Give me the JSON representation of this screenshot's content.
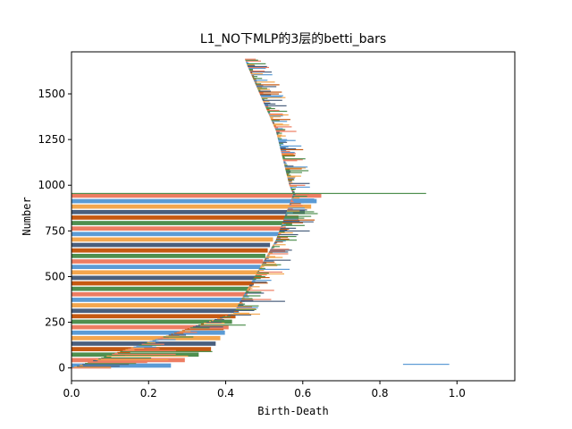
{
  "chart_data": {
    "type": "bar",
    "orientation": "horizontal",
    "title": "L1_NO下MLP的3层的betti_bars",
    "xlabel": "Birth-Death",
    "ylabel": "Number",
    "xlim": [
      0.0,
      1.15
    ],
    "ylim": [
      -70,
      1730
    ],
    "xticks": [
      0.0,
      0.2,
      0.4,
      0.6,
      0.8,
      1.0
    ],
    "xtick_labels": [
      "0.0",
      "0.2",
      "0.4",
      "0.6",
      "0.8",
      "1.0"
    ],
    "yticks": [
      0,
      250,
      500,
      750,
      1000,
      1250,
      1500
    ],
    "ytick_labels": [
      "0",
      "250",
      "500",
      "750",
      "1000",
      "1250",
      "1500"
    ],
    "grid": false,
    "palette": [
      "#5b9bd5",
      "#ed7d62",
      "#4f8f4f",
      "#c65911",
      "#4a5f7d",
      "#f3a64e"
    ],
    "left_edge": [
      [
        0,
        0.0
      ],
      [
        300,
        0.42
      ],
      [
        700,
        0.53
      ],
      [
        950,
        0.575
      ],
      [
        1000,
        0.565
      ],
      [
        1300,
        0.53
      ],
      [
        1660,
        0.455
      ],
      [
        1690,
        0.45
      ]
    ],
    "long_bar_right": [
      [
        0,
        0.24
      ],
      [
        100,
        0.36
      ],
      [
        200,
        0.4
      ],
      [
        300,
        0.43
      ],
      [
        400,
        0.455
      ],
      [
        500,
        0.48
      ],
      [
        600,
        0.5
      ],
      [
        700,
        0.52
      ],
      [
        800,
        0.575
      ],
      [
        900,
        0.63
      ],
      [
        950,
        0.65
      ]
    ],
    "spread_by_range": [
      {
        "from": 0,
        "to": 100,
        "tail": 0.25
      },
      {
        "from": 100,
        "to": 400,
        "tail": 0.12
      },
      {
        "from": 400,
        "to": 950,
        "tail": 0.08
      },
      {
        "from": 950,
        "to": 1700,
        "tail": 0.06
      }
    ],
    "long_bars_range": [
      0,
      950
    ],
    "long_bar_thickness": 30,
    "outlier_bars": [
      {
        "y": 955,
        "start": 0.0,
        "end": 0.92,
        "color": "#4f8f4f"
      },
      {
        "y": 20,
        "start": 0.86,
        "end": 0.98,
        "color": "#5b9bd5"
      }
    ]
  }
}
